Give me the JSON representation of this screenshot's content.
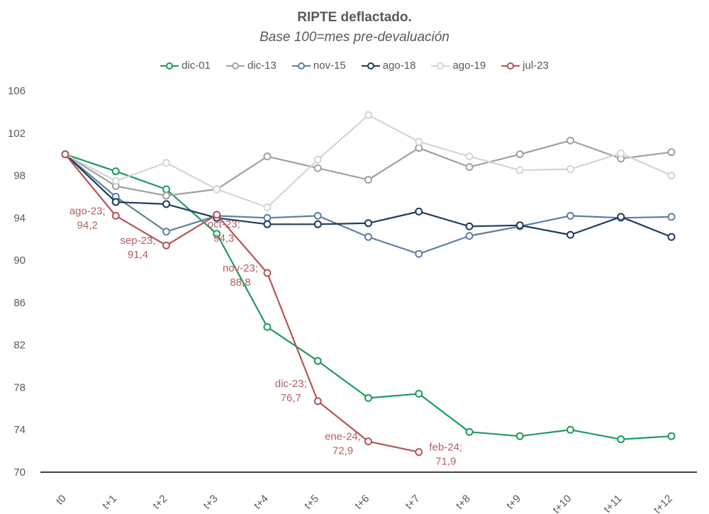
{
  "chart_data": {
    "type": "line",
    "title": "RIPTE deflactado.",
    "subtitle": "Base 100=mes pre-devaluación",
    "xlabel": "",
    "ylabel": "",
    "ylim": [
      70,
      106
    ],
    "yticks": [
      70,
      74,
      78,
      82,
      86,
      90,
      94,
      98,
      102,
      106
    ],
    "grid": false,
    "legend_position": "top-center",
    "categories": [
      "t0",
      "t+1",
      "t+2",
      "t+3",
      "t+4",
      "t+5",
      "t+6",
      "t+7",
      "t+8",
      "t+9",
      "t+10",
      "t+11",
      "t+12"
    ],
    "series": [
      {
        "name": "dic-01",
        "color": "#1e9a5f",
        "values": [
          100,
          98.4,
          96.7,
          92.5,
          83.7,
          80.5,
          77.0,
          77.4,
          73.8,
          73.4,
          74.0,
          73.1,
          73.4
        ]
      },
      {
        "name": "dic-13",
        "color": "#a0a0a0",
        "values": [
          100,
          97.0,
          96.1,
          96.7,
          99.8,
          98.7,
          97.6,
          100.6,
          98.8,
          100.0,
          101.3,
          99.6,
          100.2
        ]
      },
      {
        "name": "nov-15",
        "color": "#5d7fa0",
        "values": [
          100,
          96.0,
          92.7,
          94.2,
          94.0,
          94.2,
          92.2,
          90.6,
          92.3,
          93.2,
          94.2,
          94.0,
          94.1
        ]
      },
      {
        "name": "ago-18",
        "color": "#1f3a5c",
        "values": [
          100,
          95.5,
          95.3,
          94.0,
          93.4,
          93.4,
          93.5,
          94.6,
          93.2,
          93.3,
          92.4,
          94.1,
          92.2
        ]
      },
      {
        "name": "ago-19",
        "color": "#d3d6d6",
        "values": [
          100,
          97.5,
          99.2,
          96.7,
          95.0,
          99.5,
          103.7,
          101.2,
          99.8,
          98.5,
          98.6,
          100.1,
          98.0
        ]
      },
      {
        "name": "jul-23",
        "color": "#b35558",
        "values": [
          100,
          94.2,
          91.4,
          94.3,
          88.8,
          76.7,
          72.9,
          71.9
        ]
      }
    ],
    "annotations": [
      {
        "series": "jul-23",
        "index": 1,
        "line1": "ago-23;",
        "line2": "94,2"
      },
      {
        "series": "jul-23",
        "index": 2,
        "line1": "sep-23;",
        "line2": "91,4"
      },
      {
        "series": "jul-23",
        "index": 3,
        "line1": "oct-23;",
        "line2": "94,3"
      },
      {
        "series": "jul-23",
        "index": 4,
        "line1": "nov-23;",
        "line2": "88,8"
      },
      {
        "series": "jul-23",
        "index": 5,
        "line1": "dic-23;",
        "line2": "76,7"
      },
      {
        "series": "jul-23",
        "index": 6,
        "line1": "ene-24;",
        "line2": "72,9"
      },
      {
        "series": "jul-23",
        "index": 7,
        "line1": "feb-24;",
        "line2": "71,9"
      }
    ]
  }
}
